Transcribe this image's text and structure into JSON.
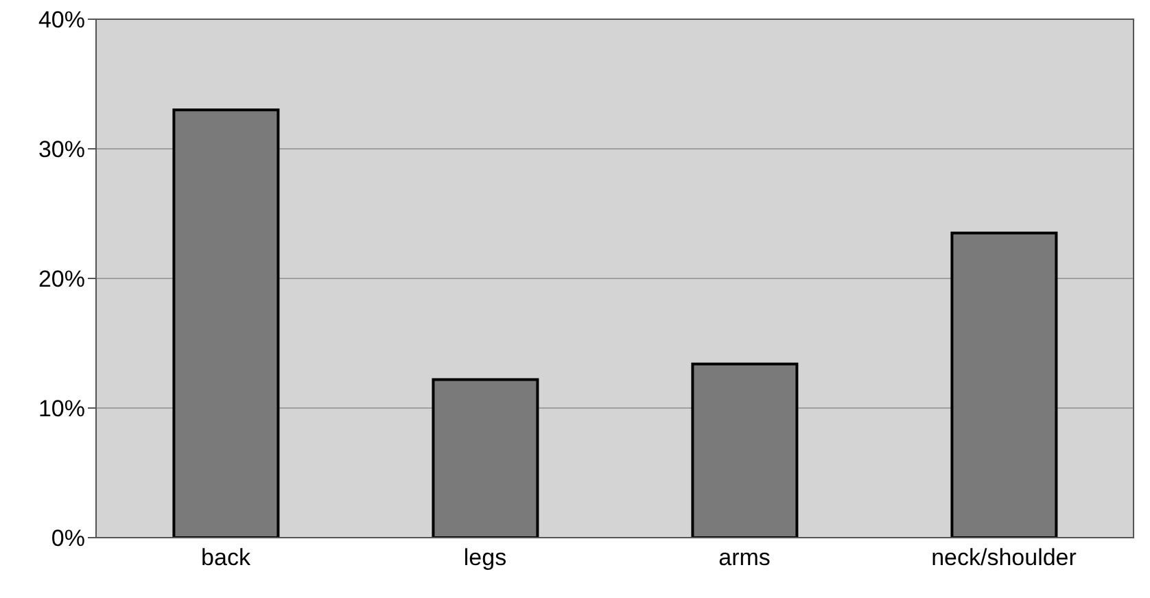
{
  "chart_data": {
    "type": "bar",
    "categories": [
      "back",
      "legs",
      "arms",
      "neck/shoulder"
    ],
    "values": [
      33,
      12.2,
      13.4,
      23.5
    ],
    "color": "#7a7a7a",
    "ylim": [
      0,
      40
    ],
    "yticks": [
      {
        "value": 0,
        "label": "0%"
      },
      {
        "value": 10,
        "label": "10%"
      },
      {
        "value": 20,
        "label": "20%"
      },
      {
        "value": 30,
        "label": "30%"
      },
      {
        "value": 40,
        "label": "40%"
      }
    ],
    "grid": "y"
  }
}
